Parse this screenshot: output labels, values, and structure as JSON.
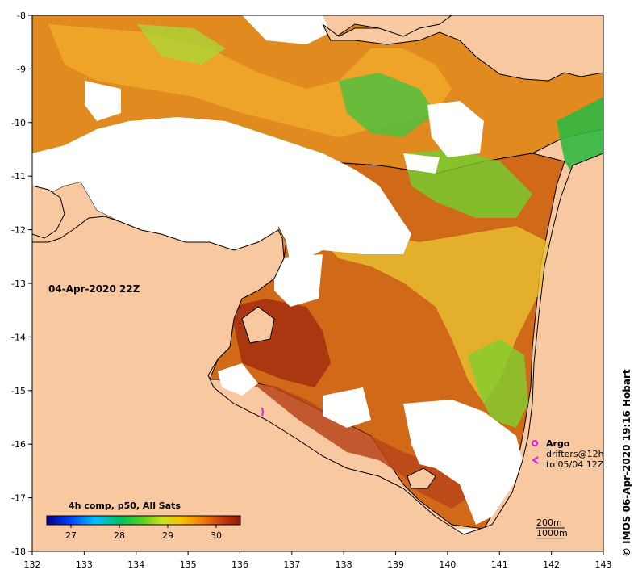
{
  "map": {
    "date_label": "04-Apr-2020 22Z",
    "x_ticks": [
      "132",
      "133",
      "134",
      "135",
      "136",
      "137",
      "138",
      "139",
      "140",
      "141",
      "142",
      "143"
    ],
    "y_ticks": [
      "-8",
      "-9",
      "-10",
      "-11",
      "-12",
      "-13",
      "-14",
      "-15",
      "-16",
      "-17",
      "-18"
    ],
    "colors": {
      "land": "#f8c8a0",
      "coast": "#000000",
      "cloud": "#ffffff",
      "sst_hot": "#a02a0a",
      "sst_warm": "#e07a18",
      "sst_mid": "#f0b030",
      "sst_cool": "#cfe040",
      "sst_cold": "#3ec040"
    }
  },
  "colorbar": {
    "title": "4h comp, p50, All Sats",
    "ticks": [
      "27",
      "28",
      "29",
      "30"
    ],
    "range": [
      26.5,
      30.5
    ]
  },
  "legend": {
    "argo": "Argo",
    "drifters_line1": "drifters@12h",
    "drifters_line2": "to 05/04 12Z",
    "contour_200": "200m",
    "contour_1000": "1000m"
  },
  "credit": "© IMOS 06-Apr-2020 19:16 Hobart"
}
